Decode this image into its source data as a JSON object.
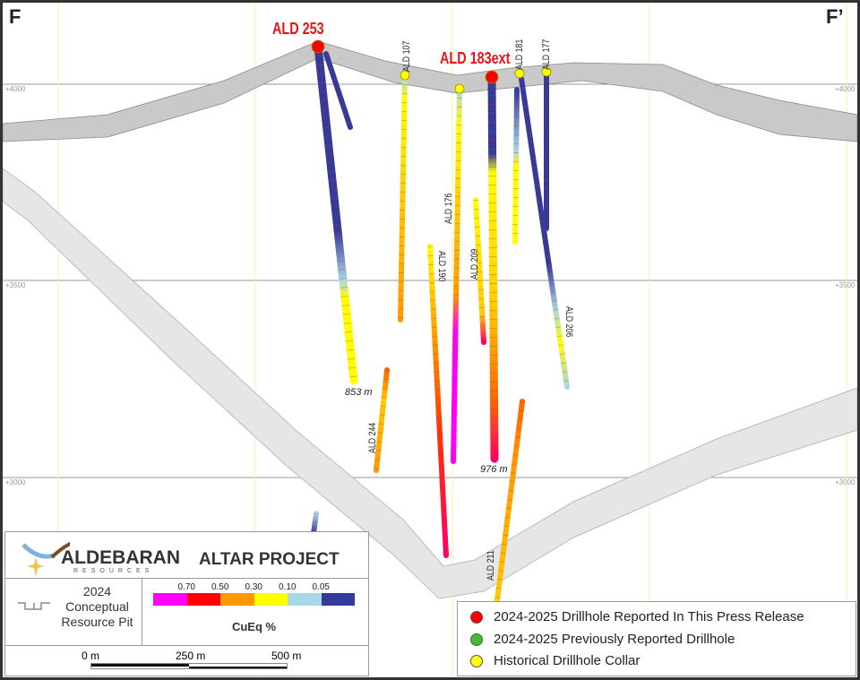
{
  "section": {
    "left_label": "F",
    "right_label": "F’"
  },
  "elevations": [
    "+4000",
    "+3500",
    "+3000"
  ],
  "highlight_holes": [
    "ALD 253",
    "ALD 183ext"
  ],
  "holes": [
    {
      "id": "ALD 253",
      "type": "reported",
      "length": "853 m"
    },
    {
      "id": "ALD 107",
      "type": "historical"
    },
    {
      "id": "ALD 176",
      "type": "historical"
    },
    {
      "id": "ALD 183ext",
      "type": "reported",
      "length": "976 m"
    },
    {
      "id": "ALD 181",
      "type": "historical"
    },
    {
      "id": "ALD 177",
      "type": "historical"
    },
    {
      "id": "ALD 190",
      "type": "historical"
    },
    {
      "id": "ALD 209",
      "type": "historical"
    },
    {
      "id": "ALD 206",
      "type": "historical"
    },
    {
      "id": "ALD 244",
      "type": "historical"
    },
    {
      "id": "ALD 211",
      "type": "historical"
    }
  ],
  "legend": {
    "logo_text": "ALDEBARAN",
    "logo_subtext": "RESOURCES",
    "project": "ALTAR PROJECT",
    "pit_label": [
      "2024",
      "Conceptual",
      "Resource Pit"
    ],
    "scale_title": "CuEq %",
    "scale_breaks": [
      "0.70",
      "0.50",
      "0.30",
      "0.10",
      "0.05"
    ],
    "scale_colors": [
      "#ff00ff",
      "#ff0000",
      "#ff9900",
      "#ffff00",
      "#a8d8e8",
      "#333a9a"
    ],
    "scalebar": [
      "0 m",
      "250 m",
      "500 m"
    ],
    "items": [
      {
        "label": "2024-2025 Drillhole Reported In This Press Release",
        "color": "#ff0000"
      },
      {
        "label": "2024-2025 Previously Reported Drillhole",
        "color": "#44bb33"
      },
      {
        "label": "Historical Drillhole Collar",
        "color": "#ffff00"
      }
    ]
  }
}
